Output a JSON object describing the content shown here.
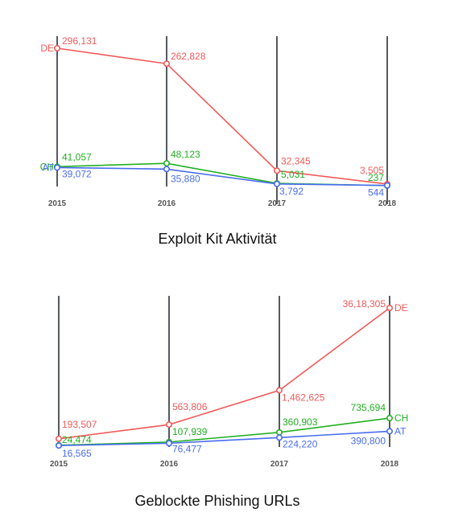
{
  "colors": {
    "DE": "#f25a5a",
    "CH": "#22b022",
    "AT": "#4a6cf0",
    "axis": "#555a60"
  },
  "chart_data": [
    {
      "type": "line",
      "title": "Exploit Kit Aktivität",
      "x": [
        "2015",
        "2016",
        "2017",
        "2018"
      ],
      "series": [
        {
          "name": "DE",
          "values": [
            296131,
            262828,
            32345,
            3505
          ],
          "labels": [
            "296,131",
            "262,828",
            "32,345",
            "3,505"
          ]
        },
        {
          "name": "CH",
          "values": [
            41057,
            48123,
            5031,
            237
          ],
          "labels": [
            "41,057",
            "48,123",
            "5,031",
            "237"
          ]
        },
        {
          "name": "AT",
          "values": [
            39072,
            35880,
            3792,
            544
          ],
          "labels": [
            "39,072",
            "35,880",
            "3,792",
            "544"
          ]
        }
      ],
      "legend": "series names at the left end of each line",
      "grid": false
    },
    {
      "type": "line",
      "title": "Geblockte Phishing URLs",
      "x": [
        "2015",
        "2016",
        "2017",
        "2018"
      ],
      "series": [
        {
          "name": "DE",
          "values": [
            193507,
            563806,
            1462625,
            3618305
          ],
          "labels": [
            "193,507",
            "563,806",
            "1,462,625",
            "36,18,305"
          ]
        },
        {
          "name": "CH",
          "values": [
            24474,
            107939,
            360903,
            735694
          ],
          "labels": [
            "24,474",
            "107,939",
            "360,903",
            "735,694"
          ]
        },
        {
          "name": "AT",
          "values": [
            16565,
            76477,
            224220,
            390800
          ],
          "labels": [
            "16,565",
            "76,477",
            "224,220",
            "390,800"
          ]
        }
      ],
      "legend": "series names at the right end of each line",
      "grid": false
    }
  ]
}
